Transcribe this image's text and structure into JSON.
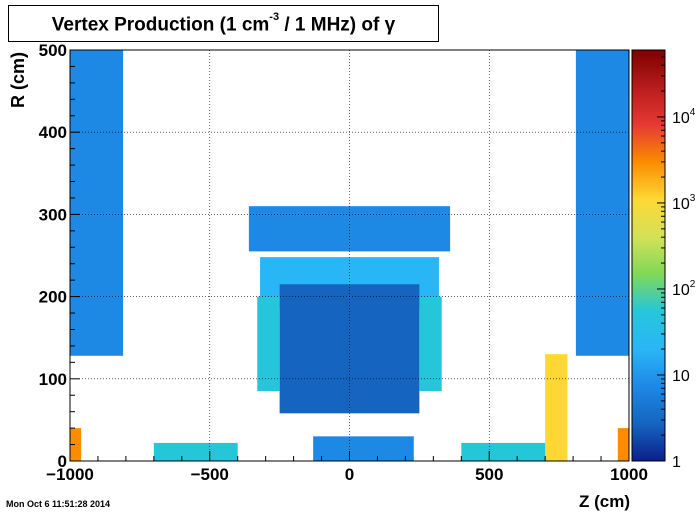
{
  "chart_data": {
    "type": "heatmap",
    "title": {
      "main": "Vertex Production (1 cm",
      "sup": "-3",
      "rest": " / 1 MHz) of  γ"
    },
    "xlabel": "Z (cm)",
    "ylabel": "R (cm)",
    "xlim": [
      -1000,
      1000
    ],
    "ylim": [
      0,
      500
    ],
    "x_ticks": [
      "−1000",
      "−500",
      "0",
      "500",
      "1000"
    ],
    "x_tick_values": [
      -1000,
      -500,
      0,
      500,
      1000
    ],
    "y_ticks": [
      "0",
      "100",
      "200",
      "300",
      "400",
      "500"
    ],
    "y_tick_values": [
      0,
      100,
      200,
      300,
      400,
      500
    ],
    "grid": true,
    "colorbar": {
      "scale": "log",
      "range": [
        1,
        60000
      ],
      "tick_labels": [
        {
          "base": "1",
          "exp": "",
          "value": 1
        },
        {
          "base": "10",
          "exp": "",
          "value": 10
        },
        {
          "base": "10",
          "exp": "2",
          "value": 100
        },
        {
          "base": "10",
          "exp": "3",
          "value": 1000
        },
        {
          "base": "10",
          "exp": "4",
          "value": 10000
        }
      ],
      "palette": [
        "#0b1f8c",
        "#1565c0",
        "#1e88e5",
        "#29b6f6",
        "#26c6da",
        "#7ed957",
        "#d4e157",
        "#fdd835",
        "#fb8c00",
        "#e53935",
        "#b71c1c",
        "#7f0000"
      ]
    },
    "regions": [
      {
        "z": [
          -1000,
          -810
        ],
        "r": [
          128,
          500
        ],
        "value": 8
      },
      {
        "z": [
          810,
          1000
        ],
        "r": [
          128,
          500
        ],
        "value": 8
      },
      {
        "z": [
          -320,
          320
        ],
        "r": [
          185,
          248
        ],
        "value": 25
      },
      {
        "z": [
          -360,
          360
        ],
        "r": [
          255,
          310
        ],
        "value": 8
      },
      {
        "z": [
          -250,
          250
        ],
        "r": [
          58,
          215
        ],
        "value": 4
      },
      {
        "z": [
          -330,
          -250
        ],
        "r": [
          85,
          200
        ],
        "value": 40
      },
      {
        "z": [
          250,
          330
        ],
        "r": [
          85,
          200
        ],
        "value": 60
      },
      {
        "z": [
          700,
          780
        ],
        "r": [
          0,
          130
        ],
        "value": 800
      },
      {
        "z": [
          -1000,
          -960
        ],
        "r": [
          0,
          40
        ],
        "value": 3000
      },
      {
        "z": [
          960,
          1000
        ],
        "r": [
          0,
          40
        ],
        "value": 3000
      },
      {
        "z": [
          -700,
          -400
        ],
        "r": [
          0,
          22
        ],
        "value": 60
      },
      {
        "z": [
          400,
          700
        ],
        "r": [
          0,
          22
        ],
        "value": 60
      },
      {
        "z": [
          -130,
          230
        ],
        "r": [
          0,
          30
        ],
        "value": 10
      }
    ]
  },
  "footer": {
    "timestamp": "Mon Oct  6 11:51:28 2014"
  }
}
